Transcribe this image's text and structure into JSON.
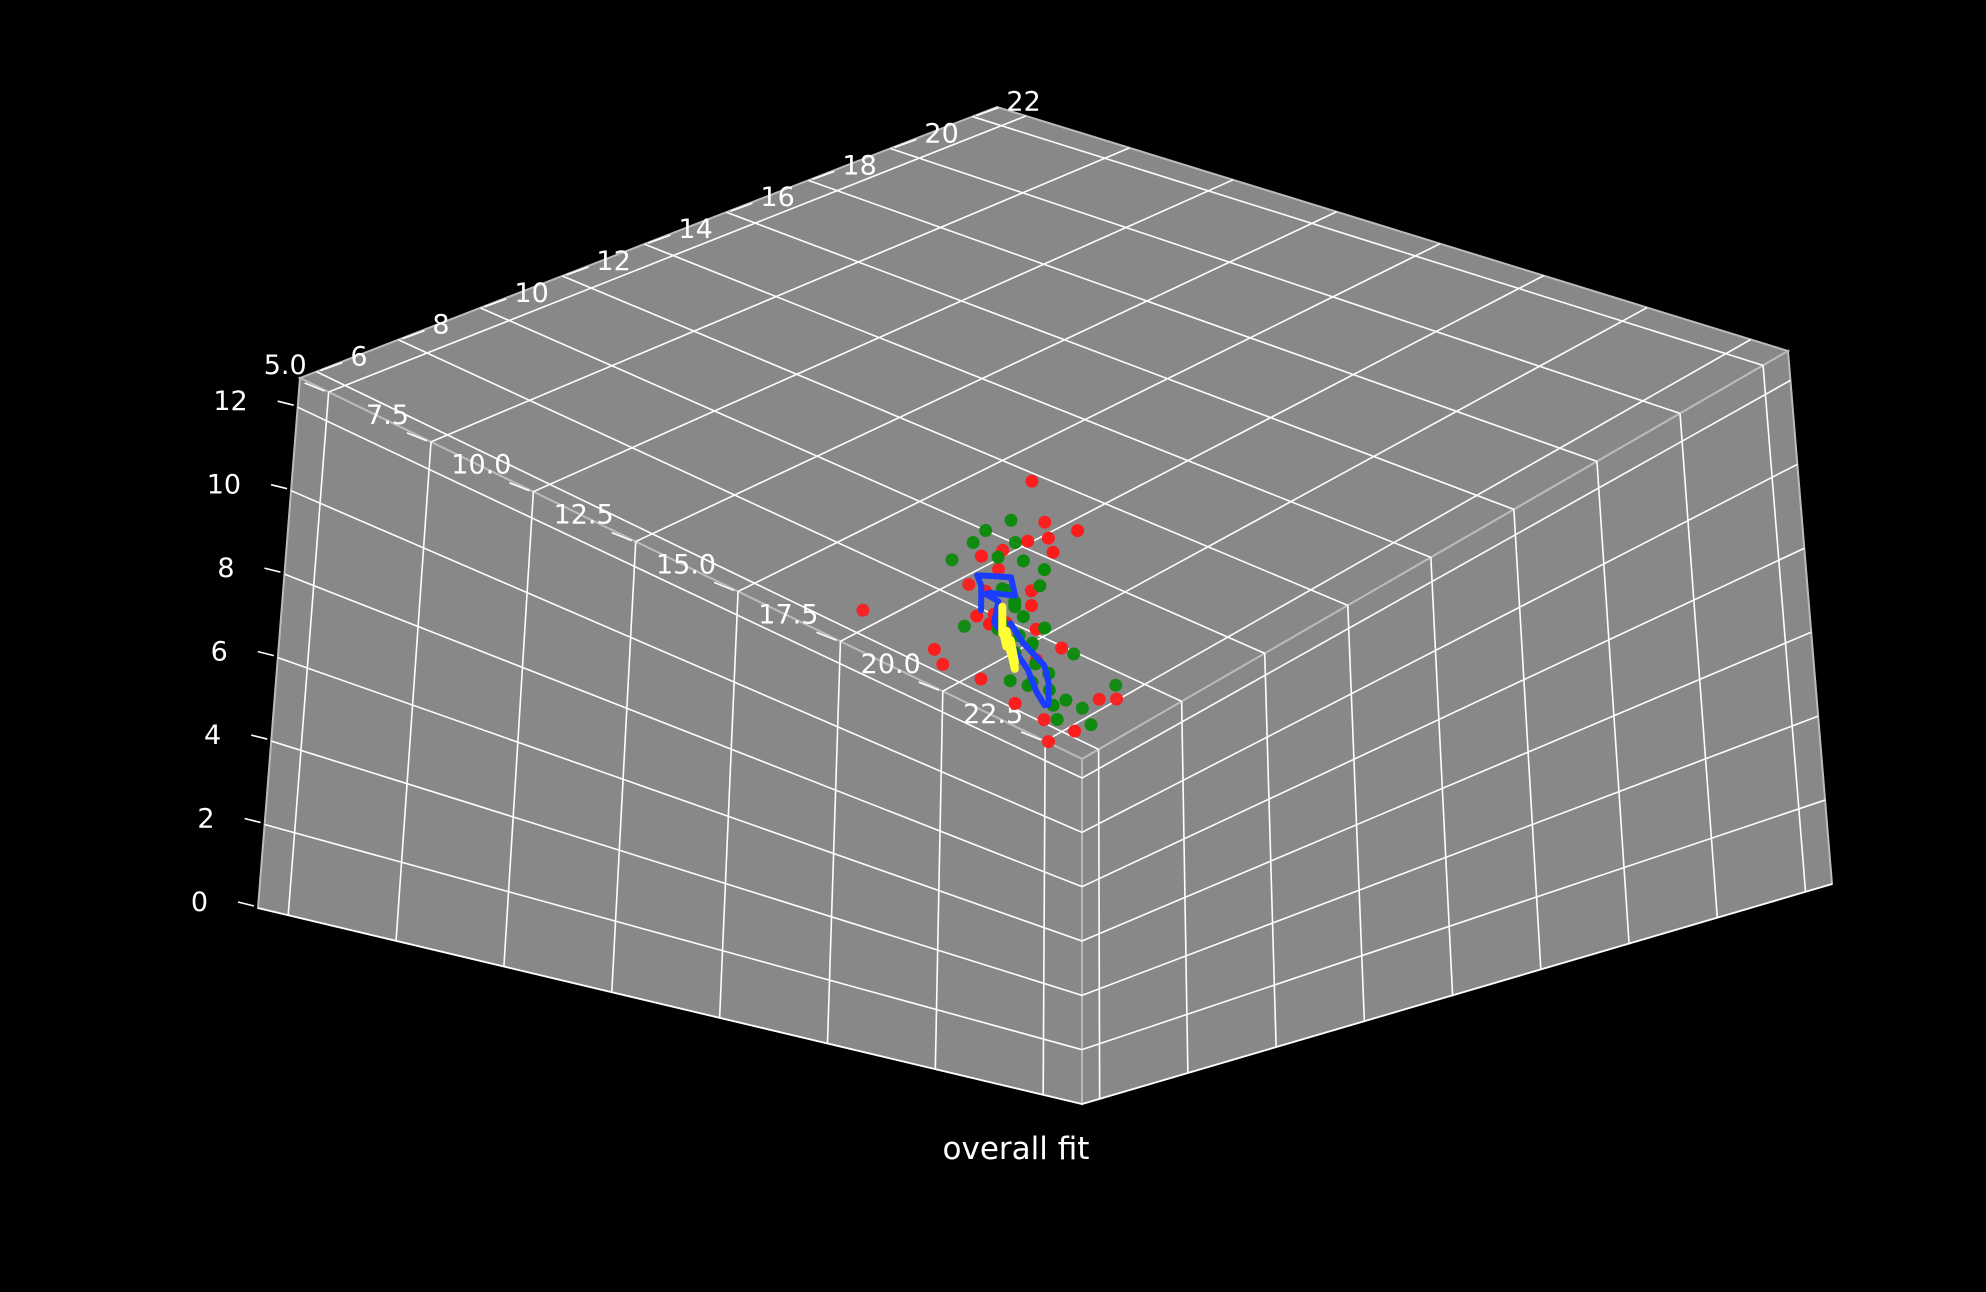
{
  "chart_data": {
    "type": "scatter",
    "title": "overall fit",
    "colors": {
      "background": "#000000",
      "pane": "#888888",
      "grid": "#ffffff",
      "text": "#ffffff",
      "red_points": "#ff1a1a",
      "green_points": "#0a8a0a",
      "blue_line": "#1a3cff",
      "yellow_line": "#ffff33"
    },
    "axes": {
      "x": {
        "ticks": [
          6,
          8,
          10,
          12,
          14,
          16,
          18,
          20,
          22
        ],
        "tick_labels": [
          "6",
          "8",
          "10",
          "12",
          "14",
          "16",
          "18",
          "20",
          "22"
        ],
        "range": [
          5.6,
          22.6
        ]
      },
      "y": {
        "ticks": [
          5.0,
          7.5,
          10.0,
          12.5,
          15.0,
          17.5,
          20.0,
          22.5
        ],
        "tick_labels": [
          "5.0",
          "7.5",
          "10.0",
          "12.5",
          "15.0",
          "17.5",
          "20.0",
          "22.5"
        ],
        "range": [
          4.3,
          23.4
        ]
      },
      "z": {
        "ticks": [
          0,
          2,
          4,
          6,
          8,
          10,
          12
        ],
        "tick_labels": [
          "0",
          "2",
          "4",
          "6",
          "8",
          "10",
          "12"
        ],
        "range": [
          0,
          12.7
        ]
      }
    },
    "grid": true,
    "series": [
      {
        "kind": "scatter",
        "color": "red",
        "points": [
          [
            14.2,
            14.6,
            9.6
          ],
          [
            13.9,
            14.2,
            9.4
          ],
          [
            15.1,
            12.6,
            9.7
          ],
          [
            12.7,
            15.0,
            8.9
          ],
          [
            13.2,
            14.5,
            8.1
          ],
          [
            12.4,
            14.0,
            8.0
          ],
          [
            14.3,
            14.1,
            6.4
          ],
          [
            13.1,
            16.2,
            6.3
          ],
          [
            12.6,
            15.4,
            5.7
          ],
          [
            12.8,
            15.3,
            5.0
          ],
          [
            14.0,
            14.7,
            4.6
          ],
          [
            14.1,
            13.2,
            4.8
          ],
          [
            12.5,
            12.9,
            6.7
          ],
          [
            15.2,
            11.8,
            7.7
          ],
          [
            14.9,
            11.9,
            6.3
          ],
          [
            12.5,
            11.2,
            7.1
          ],
          [
            13.3,
            12.3,
            5.8
          ],
          [
            14.6,
            13.2,
            5.7
          ],
          [
            14.2,
            12.4,
            7.3
          ],
          [
            15.4,
            12.8,
            7.9
          ],
          [
            14.8,
            11.4,
            6.9
          ],
          [
            15.9,
            12.1,
            8.2
          ],
          [
            13.5,
            13.6,
            7.2
          ],
          [
            14.4,
            13.4,
            6.6
          ],
          [
            13.8,
            15.9,
            5.9
          ],
          [
            13.6,
            12.9,
            8.6
          ],
          [
            12.9,
            13.8,
            7.5
          ],
          [
            15.5,
            11.4,
            7.0
          ],
          [
            13.9,
            12.6,
            5.3
          ],
          [
            14.7,
            12.9,
            8.5
          ]
        ]
      },
      {
        "kind": "scatter",
        "color": "green",
        "points": [
          [
            13.7,
            12.9,
            9.2
          ],
          [
            13.3,
            14.6,
            8.6
          ],
          [
            13.5,
            13.4,
            8.8
          ],
          [
            13.1,
            14.2,
            8.0
          ],
          [
            14.1,
            13.9,
            8.4
          ],
          [
            13.9,
            13.6,
            8.6
          ],
          [
            12.9,
            14.4,
            8.3
          ],
          [
            14.2,
            12.1,
            8.4
          ],
          [
            13.2,
            15.5,
            7.2
          ],
          [
            12.6,
            15.2,
            7.1
          ],
          [
            13.0,
            16.7,
            6.9
          ],
          [
            12.4,
            14.8,
            6.6
          ],
          [
            13.0,
            15.9,
            6.0
          ],
          [
            13.3,
            15.8,
            5.4
          ],
          [
            13.4,
            14.9,
            5.2
          ],
          [
            13.9,
            14.6,
            5.4
          ],
          [
            14.0,
            14.2,
            5.1
          ],
          [
            13.9,
            13.8,
            5.6
          ],
          [
            14.6,
            13.0,
            5.0
          ],
          [
            14.8,
            13.3,
            4.9
          ],
          [
            15.0,
            12.7,
            5.8
          ],
          [
            14.6,
            12.3,
            6.4
          ],
          [
            14.2,
            13.1,
            6.0
          ],
          [
            14.5,
            12.5,
            6.4
          ],
          [
            14.3,
            11.8,
            6.2
          ],
          [
            15.0,
            12.1,
            6.9
          ],
          [
            14.8,
            12.4,
            8.8
          ],
          [
            13.8,
            13.2,
            7.8
          ],
          [
            13.5,
            14.0,
            7.5
          ],
          [
            12.9,
            14.8,
            7.3
          ],
          [
            14.4,
            13.6,
            6.7
          ],
          [
            13.7,
            14.4,
            6.1
          ],
          [
            13.6,
            13.8,
            6.9
          ],
          [
            14.0,
            12.9,
            6.6
          ],
          [
            14.2,
            11.6,
            7.8
          ],
          [
            15.6,
            11.7,
            7.7
          ]
        ]
      },
      {
        "kind": "line",
        "color": "blue",
        "points": [
          [
            13.0,
            13.5,
            7.7
          ],
          [
            13.4,
            13.1,
            7.7
          ],
          [
            13.8,
            12.7,
            7.7
          ],
          [
            14.1,
            12.3,
            7.7
          ],
          [
            14.8,
            12.4,
            7.4
          ],
          [
            14.5,
            12.8,
            7.2
          ],
          [
            14.6,
            12.1,
            7.0
          ],
          [
            14.8,
            11.8,
            6.8
          ],
          [
            15.1,
            11.8,
            6.5
          ],
          [
            14.9,
            11.9,
            6.1
          ],
          [
            14.7,
            12.5,
            5.8
          ],
          [
            14.3,
            13.3,
            5.6
          ],
          [
            13.9,
            13.9,
            5.4
          ],
          [
            13.5,
            14.5,
            5.4
          ],
          [
            13.3,
            14.8,
            5.6
          ],
          [
            13.5,
            14.6,
            6.0
          ],
          [
            13.4,
            14.6,
            6.5
          ],
          [
            13.4,
            14.1,
            6.9
          ],
          [
            13.4,
            13.8,
            7.3
          ]
        ]
      },
      {
        "kind": "line",
        "color": "yellow",
        "points": [
          [
            13.6,
            13.4,
            7.5
          ],
          [
            13.7,
            13.3,
            7.1
          ],
          [
            13.5,
            13.5,
            6.9
          ],
          [
            13.8,
            13.2,
            6.8
          ],
          [
            13.5,
            13.6,
            6.6
          ],
          [
            13.9,
            13.2,
            6.7
          ],
          [
            13.6,
            13.6,
            6.4
          ],
          [
            13.9,
            13.3,
            6.5
          ],
          [
            13.6,
            13.7,
            6.2
          ],
          [
            13.8,
            13.4,
            6.3
          ],
          [
            13.5,
            13.8,
            6.1
          ],
          [
            13.7,
            13.6,
            6.0
          ]
        ]
      }
    ]
  }
}
